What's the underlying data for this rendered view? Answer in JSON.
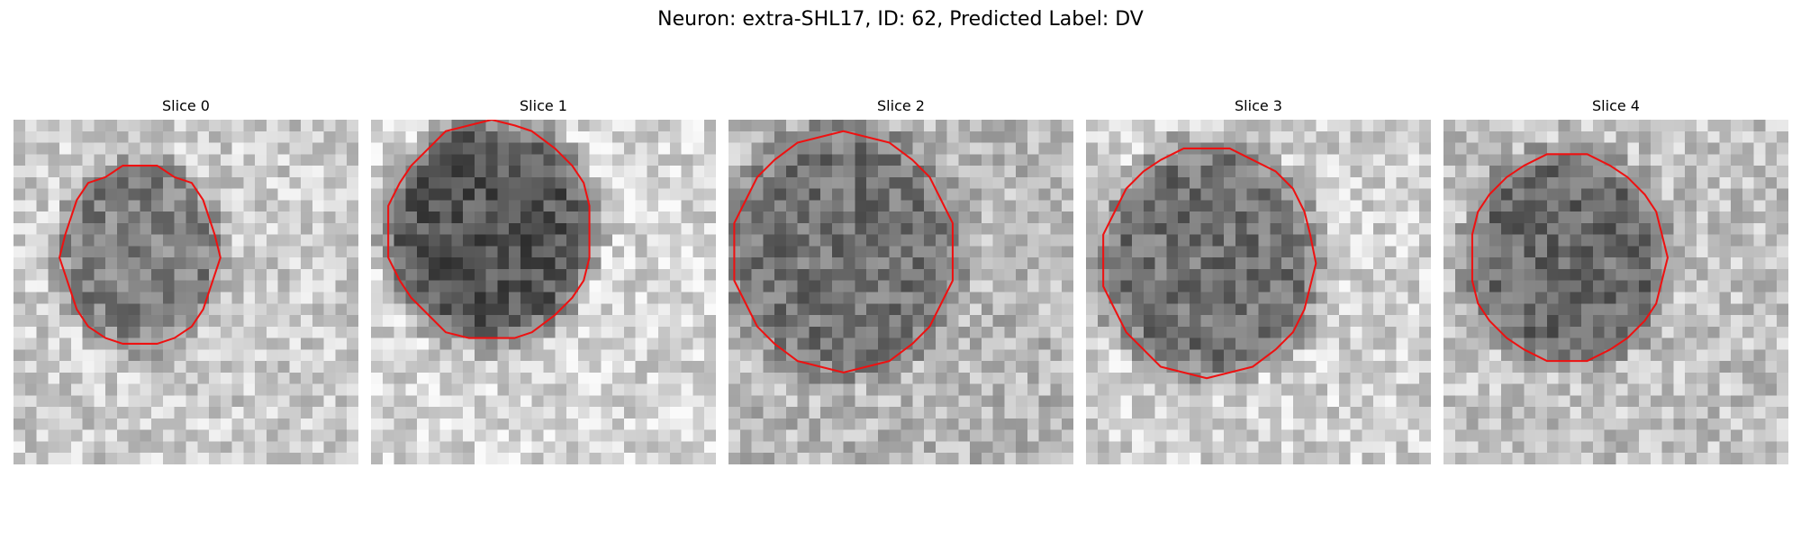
{
  "figure": {
    "title": "Neuron: extra-SHL17, ID: 62, Predicted Label: DV"
  },
  "panels": [
    {
      "title": "Slice 0",
      "contour_color": "#ee1111",
      "seed": 17,
      "nucleus_darkness": 0.5,
      "surround_brightness": 0.8
    },
    {
      "title": "Slice 1",
      "contour_color": "#ee1111",
      "seed": 29,
      "nucleus_darkness": 0.66,
      "surround_brightness": 0.84
    },
    {
      "title": "Slice 2",
      "contour_color": "#ee1111",
      "seed": 43,
      "nucleus_darkness": 0.55,
      "surround_brightness": 0.72
    },
    {
      "title": "Slice 3",
      "contour_color": "#ee1111",
      "seed": 57,
      "nucleus_darkness": 0.55,
      "surround_brightness": 0.82
    },
    {
      "title": "Slice 4",
      "contour_color": "#ee1111",
      "seed": 71,
      "nucleus_darkness": 0.58,
      "surround_brightness": 0.76
    }
  ]
}
